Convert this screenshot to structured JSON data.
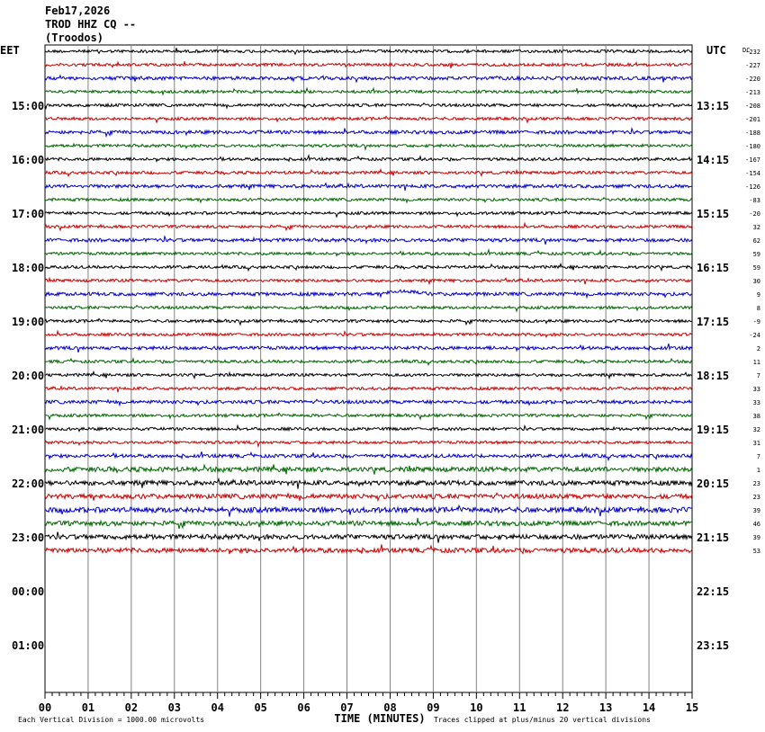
{
  "header": {
    "date": "Feb17,2026",
    "station": "TROD HHZ CQ --",
    "location": "(Troodos)"
  },
  "left_timezone": "EET",
  "right_timezone": "UTC",
  "dc_label": "DC",
  "footer": {
    "xlabel": "TIME (MINUTES)",
    "scale_note": "Each Vertical Division = 1000.00 microvolts",
    "clip_note": "Traces clipped at plus/minus 20 vertical divisions"
  },
  "colors": {
    "trace_cycle": [
      "#000000",
      "#cc0000",
      "#0000cc",
      "#006600"
    ],
    "grid": "#808080",
    "axis": "#000000"
  },
  "chart_data": {
    "type": "line",
    "title": "Feb17,2026 TROD HHZ CQ -- (Troodos)",
    "xlabel": "TIME (MINUTES)",
    "xlim": [
      0,
      15
    ],
    "x_ticks": [
      "00",
      "01",
      "02",
      "03",
      "04",
      "05",
      "06",
      "07",
      "08",
      "09",
      "10",
      "11",
      "12",
      "13",
      "14",
      "15"
    ],
    "left_hour_labels": [
      "15:00",
      "16:00",
      "17:00",
      "18:00",
      "19:00",
      "20:00",
      "21:00",
      "22:00",
      "23:00",
      "00:00",
      "01:00"
    ],
    "right_hour_labels": [
      "13:15",
      "14:15",
      "15:15",
      "16:15",
      "17:15",
      "18:15",
      "19:15",
      "20:15",
      "21:15",
      "22:15",
      "23:15"
    ],
    "trace_minutes": 15,
    "trace_count": 38,
    "dc_offsets": [
      "-232",
      "-227",
      "-220",
      "-213",
      "-208",
      "-201",
      "-188",
      "-180",
      "-167",
      "-154",
      "-126",
      "-83",
      "-20",
      "32",
      "62",
      "59",
      "59",
      "30",
      "9",
      "8",
      "-9",
      "-24",
      "2",
      "11",
      "7",
      "33",
      "33",
      "38",
      "32",
      "31",
      "7",
      "1",
      "23",
      "23",
      "39",
      "46",
      "39",
      "53"
    ],
    "scale_microvolts_per_division": 1000.0,
    "clip_divisions": 20,
    "grid": true
  }
}
